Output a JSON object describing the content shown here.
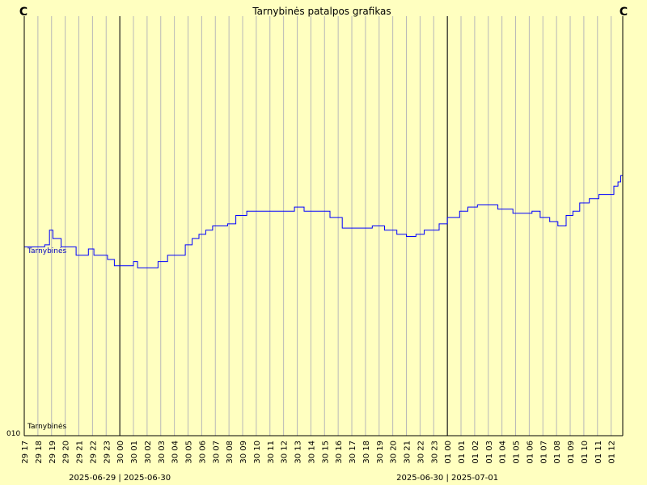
{
  "colors": {
    "background": "#ffffc0",
    "grid": "#b8b8b8",
    "axis": "#000000",
    "series": "#0000ff",
    "series_label": "#0000c0"
  },
  "corner_labels": {
    "left": "C",
    "right": "C"
  },
  "chart_data": {
    "type": "line",
    "title": "Tarnybinės patalpos grafikas",
    "y_tick_label": "010",
    "bottom_label": "Tarnybinės",
    "x_tick_labels": [
      "29 17",
      "29 18",
      "29 19",
      "29 20",
      "29 21",
      "29 22",
      "29 23",
      "30 00",
      "30 01",
      "30 02",
      "30 03",
      "30 04",
      "30 05",
      "30 06",
      "30 07",
      "30 08",
      "30 09",
      "30 10",
      "30 11",
      "30 12",
      "30 13",
      "30 14",
      "30 15",
      "30 16",
      "30 17",
      "30 18",
      "30 19",
      "30 20",
      "30 21",
      "30 22",
      "30 23",
      "01 00",
      "01 01",
      "01 02",
      "01 03",
      "01 04",
      "01 05",
      "01 06",
      "01 07",
      "01 08",
      "01 09",
      "01 10",
      "01 11",
      "01 12"
    ],
    "day_boundaries": [
      {
        "at_hour": 7,
        "label": "2025-06-29 | 2025-06-30"
      },
      {
        "at_hour": 31,
        "label": "2025-06-30 | 2025-07-01"
      }
    ],
    "series": [
      {
        "name": "Tarnybinės",
        "x_hours": [
          0,
          1.5,
          1.85,
          2.1,
          2.7,
          3.1,
          3.8,
          4.5,
          4.7,
          5.1,
          5.8,
          6.1,
          6.6,
          7.1,
          7.5,
          8.0,
          8.3,
          9.0,
          9.4,
          9.8,
          10.5,
          11.4,
          11.8,
          12.3,
          12.8,
          13.3,
          13.8,
          14.4,
          14.9,
          15.5,
          16.3,
          17.3,
          18.0,
          19.0,
          19.8,
          20.5,
          21.3,
          22.4,
          23.3,
          24.5,
          25.5,
          26.4,
          27.3,
          28.0,
          28.7,
          29.3,
          30.4,
          31.0,
          31.9,
          32.5,
          33.2,
          34.0,
          34.7,
          35.3,
          35.8,
          36.4,
          37.2,
          37.8,
          38.5,
          39.1,
          39.7,
          40.2,
          40.7,
          41.4,
          42.1,
          42.8,
          43.2,
          43.5,
          43.7
        ],
        "values": [
          45.0,
          45.5,
          49.0,
          47.0,
          45.0,
          45.0,
          43.0,
          43.0,
          44.5,
          43.0,
          43.0,
          42.0,
          40.5,
          40.5,
          40.5,
          41.5,
          40.0,
          40.0,
          40.0,
          41.5,
          43.0,
          43.0,
          45.5,
          47.0,
          48.0,
          49.0,
          50.0,
          50.0,
          50.5,
          52.5,
          53.5,
          53.5,
          53.5,
          53.5,
          54.5,
          53.5,
          53.5,
          52.0,
          49.5,
          49.5,
          50.0,
          49.0,
          48.0,
          47.5,
          48.0,
          49.0,
          50.5,
          52.0,
          53.5,
          54.5,
          55.0,
          55.0,
          54.0,
          54.0,
          53.0,
          53.0,
          53.5,
          52.0,
          51.0,
          50.0,
          52.5,
          53.5,
          55.5,
          56.5,
          57.5,
          57.5,
          59.5,
          60.5,
          62.0
        ],
        "x_range": [
          0,
          43.85
        ],
        "y_range": [
          0,
          100
        ]
      }
    ]
  }
}
